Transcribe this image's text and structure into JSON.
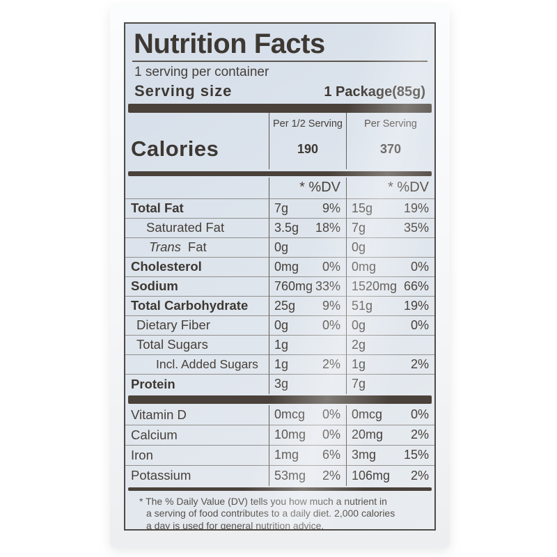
{
  "label": {
    "title": "Nutrition Facts",
    "servings_per_container": "1 serving per container",
    "serving_size_label": "Serving size",
    "serving_size_value": "1 Package(85g)",
    "column_header_half": "Per 1/2 Serving",
    "column_header_full": "Per Serving",
    "calories_label": "Calories",
    "calories_half": "190",
    "calories_full": "370",
    "dv_header_half": "* %DV",
    "dv_header_full": "* %DV",
    "nutrient_rows": [
      {
        "name": "Total Fat",
        "style": "bold under",
        "a1": "7g",
        "d1": "9%",
        "a2": "15g",
        "d2": "19%"
      },
      {
        "name": "Saturated Fat",
        "style": "sub under",
        "a1": "3.5g",
        "d1": "18%",
        "a2": "7g",
        "d2": "35%"
      },
      {
        "name_italic": "Trans",
        "name": "Fat",
        "style": "sub-italic under",
        "a1": "0g",
        "d1": "",
        "a2": "0g",
        "d2": ""
      },
      {
        "name": "Cholesterol",
        "style": "bold under",
        "a1": "0mg",
        "d1": "0%",
        "a2": "0mg",
        "d2": "0%"
      },
      {
        "name": "Sodium",
        "style": "bold under",
        "a1": "760mg",
        "d1": "33%",
        "a2": "1520mg",
        "d2": "66%"
      },
      {
        "name": "Total Carbohydrate",
        "style": "bold under",
        "a1": "25g",
        "d1": "9%",
        "a2": "51g",
        "d2": "19%"
      },
      {
        "name": "Dietary Fiber",
        "style": "sub-sm under",
        "a1": "0g",
        "d1": "0%",
        "a2": "0g",
        "d2": "0%"
      },
      {
        "name": "Total Sugars",
        "style": "sub-sm under",
        "a1": "1g",
        "d1": "",
        "a2": "2g",
        "d2": ""
      },
      {
        "name": "Incl. Added Sugars",
        "style": "sub2 under",
        "a1": "1g",
        "d1": "2%",
        "a2": "1g",
        "d2": "2%"
      },
      {
        "name": "Protein",
        "style": "bold",
        "a1": "3g",
        "d1": "",
        "a2": "7g",
        "d2": ""
      }
    ],
    "vitamin_rows": [
      {
        "name": "Vitamin D",
        "style": "under",
        "a1": "0mcg",
        "d1": "0%",
        "a2": "0mcg",
        "d2": "0%"
      },
      {
        "name": "Calcium",
        "style": "under",
        "a1": "10mg",
        "d1": "0%",
        "a2": "20mg",
        "d2": "2%"
      },
      {
        "name": "Iron",
        "style": "under",
        "a1": "1mg",
        "d1": "6%",
        "a2": "3mg",
        "d2": "15%"
      },
      {
        "name": "Potassium",
        "style": "",
        "a1": "53mg",
        "d1": "2%",
        "a2": "106mg",
        "d2": "2%"
      }
    ],
    "footnote_lines": [
      "* The % Daily Value (DV) tells you how much a nutrient in",
      "a serving of food contributes to a daily diet. 2,000 calories",
      "a day is used for general nutrition advice."
    ],
    "colors": {
      "label_background": "#dde4ec",
      "ink": "#453f39",
      "divider_bar": "#49413a"
    }
  }
}
